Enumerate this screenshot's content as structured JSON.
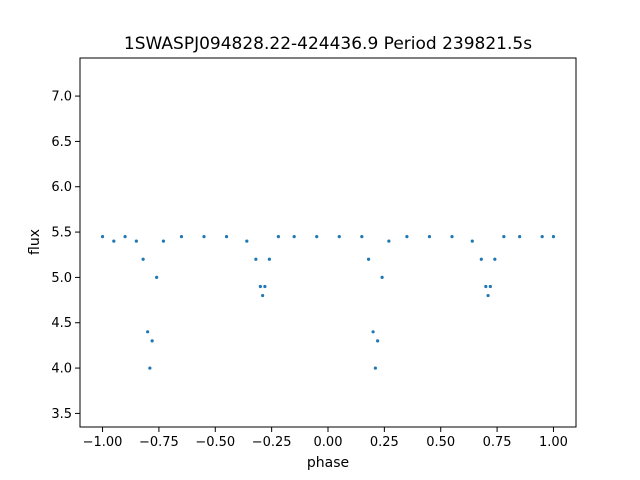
{
  "chart_data": {
    "type": "scatter",
    "title": "1SWASPJ094828.22-424436.9 Period 239821.5s",
    "xlabel": "phase",
    "ylabel": "flux",
    "xlim": [
      -1.1,
      1.1
    ],
    "ylim": [
      3.35,
      7.42
    ],
    "grid": false,
    "marker_color": "#1f77b4",
    "x_ticks": [
      {
        "value": -1.0,
        "label": "−1.00"
      },
      {
        "value": -0.75,
        "label": "−0.75"
      },
      {
        "value": -0.5,
        "label": "−0.50"
      },
      {
        "value": -0.25,
        "label": "−0.25"
      },
      {
        "value": 0.0,
        "label": "0.00"
      },
      {
        "value": 0.25,
        "label": "0.25"
      },
      {
        "value": 0.5,
        "label": "0.50"
      },
      {
        "value": 0.75,
        "label": "0.75"
      },
      {
        "value": 1.0,
        "label": "1.00"
      }
    ],
    "y_ticks": [
      {
        "value": 3.5,
        "label": "3.5"
      },
      {
        "value": 4.0,
        "label": "4.0"
      },
      {
        "value": 4.5,
        "label": "4.5"
      },
      {
        "value": 5.0,
        "label": "5.0"
      },
      {
        "value": 5.5,
        "label": "5.5"
      },
      {
        "value": 6.0,
        "label": "6.0"
      },
      {
        "value": 6.5,
        "label": "6.5"
      },
      {
        "value": 7.0,
        "label": "7.0"
      }
    ],
    "series": [
      {
        "points": [
          [
            -1.0,
            5.45
          ],
          [
            -0.95,
            5.4
          ],
          [
            -0.9,
            5.45
          ],
          [
            -0.85,
            5.4
          ],
          [
            -0.82,
            5.2
          ],
          [
            -0.8,
            4.4
          ],
          [
            -0.79,
            4.0
          ],
          [
            -0.78,
            4.3
          ],
          [
            -0.76,
            5.0
          ],
          [
            -0.73,
            5.4
          ],
          [
            -0.65,
            5.45
          ],
          [
            -0.55,
            5.45
          ],
          [
            -0.45,
            5.45
          ],
          [
            -0.36,
            5.4
          ],
          [
            -0.32,
            5.2
          ],
          [
            -0.3,
            4.9
          ],
          [
            -0.29,
            4.8
          ],
          [
            -0.28,
            4.9
          ],
          [
            -0.26,
            5.2
          ],
          [
            -0.22,
            5.45
          ],
          [
            -0.15,
            5.45
          ],
          [
            -0.05,
            5.45
          ],
          [
            0.05,
            5.45
          ],
          [
            0.15,
            5.45
          ],
          [
            0.18,
            5.2
          ],
          [
            0.2,
            4.4
          ],
          [
            0.21,
            4.0
          ],
          [
            0.22,
            4.3
          ],
          [
            0.24,
            5.0
          ],
          [
            0.27,
            5.4
          ],
          [
            0.35,
            5.45
          ],
          [
            0.45,
            5.45
          ],
          [
            0.55,
            5.45
          ],
          [
            0.64,
            5.4
          ],
          [
            0.68,
            5.2
          ],
          [
            0.7,
            4.9
          ],
          [
            0.71,
            4.8
          ],
          [
            0.72,
            4.9
          ],
          [
            0.74,
            5.2
          ],
          [
            0.78,
            5.45
          ],
          [
            0.85,
            5.45
          ],
          [
            0.95,
            5.45
          ],
          [
            1.0,
            5.45
          ]
        ]
      }
    ]
  }
}
